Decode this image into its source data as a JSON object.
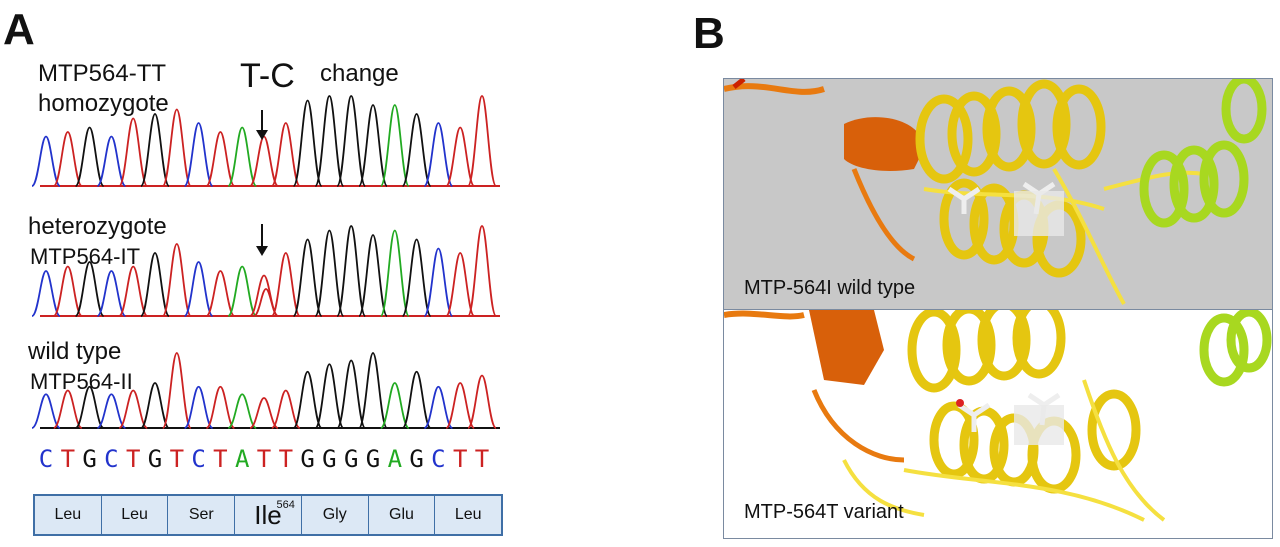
{
  "panel_a": {
    "letter": "A",
    "change_label": "T-C",
    "change_word": "change",
    "traces": [
      {
        "line1": "MTP564-TT",
        "line2": "homozygote"
      },
      {
        "line1": "heterozygote",
        "line2": "MTP564-IT"
      },
      {
        "line1": "wild type",
        "line2": "MTP564-II"
      }
    ],
    "sequence": [
      "C",
      "T",
      "G",
      "C",
      "T",
      "G",
      "T",
      "C",
      "T",
      "A",
      "T",
      "T",
      "G",
      "G",
      "G",
      "G",
      "A",
      "G",
      "C",
      "T",
      "T"
    ],
    "amino_acids": [
      "Leu",
      "Leu",
      "Ser",
      "Ile",
      "Gly",
      "Glu",
      "Leu"
    ],
    "highlight_superscript": "564",
    "base_colors": {
      "A": "#22aa22",
      "C": "#2233cc",
      "G": "#111111",
      "T": "#cc2222"
    }
  },
  "panel_b": {
    "letter": "B",
    "top_caption": "MTP-564I wild type",
    "bottom_caption": "MTP-564T variant",
    "colors": {
      "orange": "#e87a10",
      "yellow": "#f1d21a",
      "lime": "#a8d820",
      "gray_bg": "#c8c8c8"
    }
  }
}
